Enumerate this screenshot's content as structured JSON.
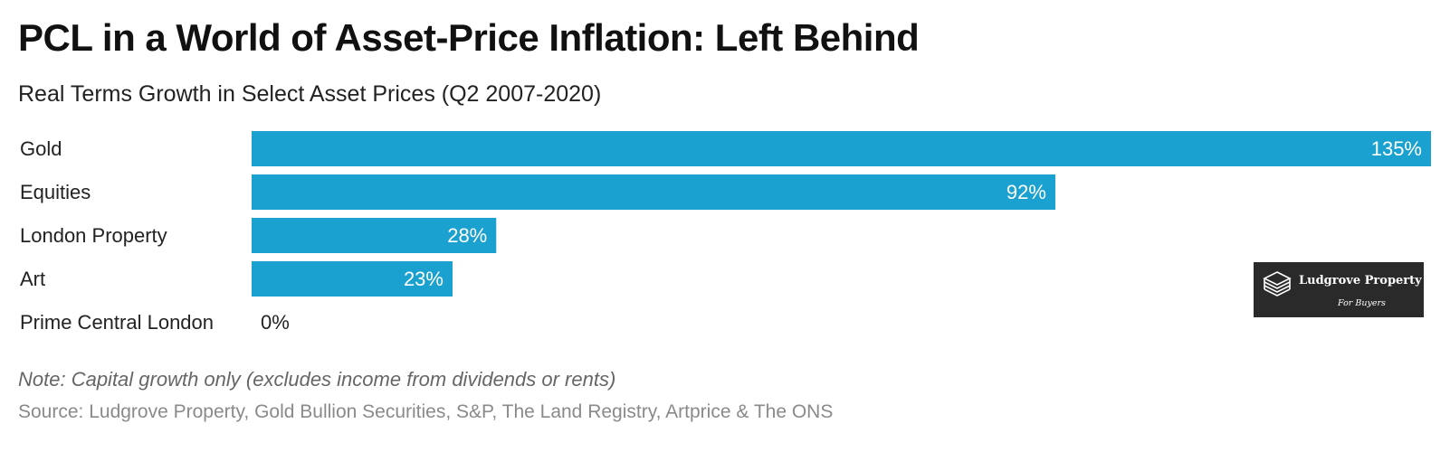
{
  "title": "PCL in a World of Asset-Price Inflation: Left Behind",
  "subtitle": "Real Terms Growth in Select Asset Prices (Q2 2007-2020)",
  "note": "Note: Capital growth only (excludes income from dividends or rents)",
  "source": "Source: Ludgrove Property, Gold Bullion Securities, S&P, The Land Registry, Artprice & The ONS",
  "logo": {
    "name": "Ludgrove Property",
    "tagline": "For Buyers",
    "icon": "stacked-layers-icon"
  },
  "colors": {
    "bar": "#1aa1cf",
    "label_inside": "#ffffff",
    "label_outside": "#222222"
  },
  "chart_data": {
    "type": "bar",
    "orientation": "horizontal",
    "categories": [
      "Gold",
      "Equities",
      "London Property",
      "Art",
      "Prime Central London"
    ],
    "values": [
      135,
      92,
      28,
      23,
      0
    ],
    "value_labels": [
      "135%",
      "92%",
      "28%",
      "23%",
      "0%"
    ],
    "xlim": [
      0,
      135
    ],
    "grid": false,
    "legend": "none"
  }
}
